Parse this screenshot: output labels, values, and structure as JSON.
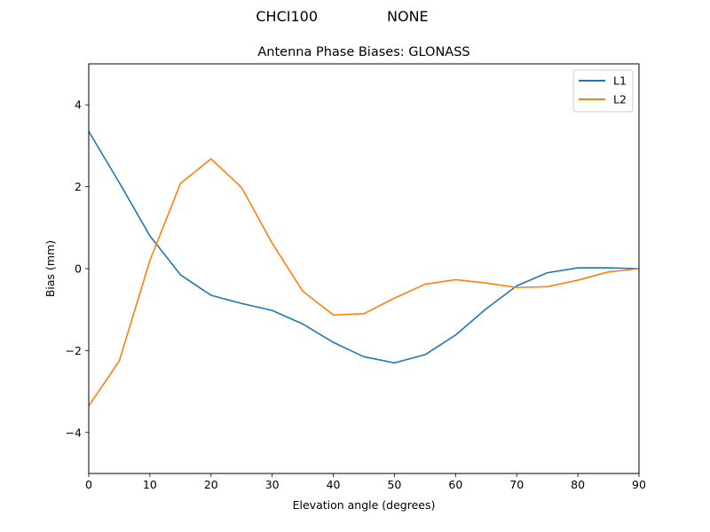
{
  "header": {
    "station": "CHCI100",
    "antenna": "NONE"
  },
  "chart_data": {
    "type": "line",
    "title": "Antenna Phase Biases: GLONASS",
    "xlabel": "Elevation angle (degrees)",
    "ylabel": "Bias (mm)",
    "xlim": [
      0,
      90
    ],
    "ylim": [
      -5,
      5
    ],
    "xticks": [
      0,
      10,
      20,
      30,
      40,
      50,
      60,
      70,
      80,
      90
    ],
    "yticks": [
      -4,
      -2,
      0,
      2,
      4
    ],
    "x": [
      0,
      5,
      10,
      15,
      20,
      25,
      30,
      35,
      40,
      45,
      50,
      55,
      60,
      65,
      70,
      75,
      80,
      85,
      90
    ],
    "series": [
      {
        "name": "L1",
        "color": "#1f77b4",
        "values": [
          3.35,
          2.1,
          0.8,
          -0.15,
          -0.65,
          -0.85,
          -1.02,
          -1.35,
          -1.8,
          -2.15,
          -2.3,
          -2.1,
          -1.62,
          -0.98,
          -0.42,
          -0.1,
          0.02,
          0.02,
          0.0
        ]
      },
      {
        "name": "L2",
        "color": "#ff7f0e",
        "values": [
          -3.35,
          -2.25,
          0.2,
          2.08,
          2.68,
          1.98,
          0.62,
          -0.55,
          -1.13,
          -1.1,
          -0.72,
          -0.38,
          -0.27,
          -0.35,
          -0.46,
          -0.44,
          -0.28,
          -0.08,
          0.0
        ]
      }
    ],
    "grid": false,
    "legend_position": "upper right"
  }
}
